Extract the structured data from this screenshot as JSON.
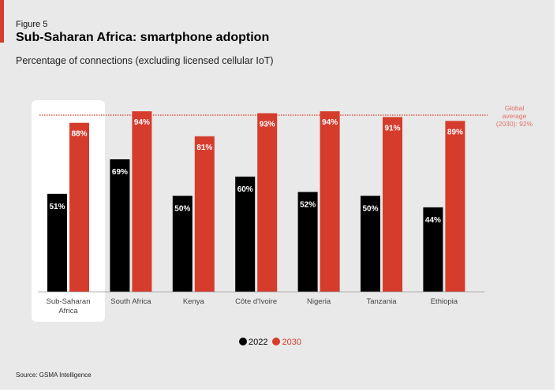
{
  "figure_label": "Figure 5",
  "title": "Sub-Saharan Africa: smartphone adoption",
  "subtitle": "Percentage of connections (excluding licensed cellular IoT)",
  "source": "Source: GSMA Intelligence",
  "colors": {
    "2022": "#000000",
    "2030": "#d63c2c",
    "background": "#e8e9e8"
  },
  "chart_data": {
    "type": "bar",
    "categories": [
      "Sub-Saharan Africa",
      "South Africa",
      "Kenya",
      "Côte d'Ivoire",
      "Nigeria",
      "Tanzania",
      "Ethiopia"
    ],
    "series": [
      {
        "name": "2022",
        "values": [
          51,
          69,
          50,
          60,
          52,
          50,
          44
        ]
      },
      {
        "name": "2030",
        "values": [
          88,
          94,
          81,
          93,
          94,
          91,
          89
        ]
      }
    ],
    "data_label_suffix": "%",
    "ylim": [
      0,
      100
    ],
    "grid": false,
    "legend": "bottom-center",
    "highlighted_category": "Sub-Saharan Africa",
    "reference_line": {
      "value": 92,
      "label": "Global average (2030): 92%",
      "label_lines": [
        "Global",
        "average",
        "(2030): 92%"
      ]
    }
  }
}
